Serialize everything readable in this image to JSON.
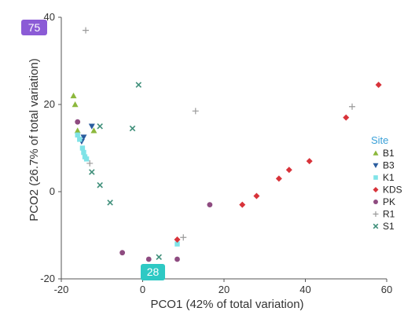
{
  "chart_data": {
    "type": "scatter",
    "xlabel": "PCO1 (42% of total variation)",
    "ylabel": "PCO2 (26.7% of total variation)",
    "xlim": [
      -20,
      60
    ],
    "ylim": [
      -20,
      40
    ],
    "x_ticks": [
      "-20",
      "0",
      "20",
      "40",
      "60"
    ],
    "y_ticks": [
      "40",
      "20",
      "0",
      "-20"
    ],
    "legend": {
      "title": "Site",
      "placement": "right"
    },
    "series": [
      {
        "name": "B1",
        "marker": "triangle-up",
        "color": "#8cb83c",
        "points": [
          [
            -17,
            22
          ],
          [
            -16.6,
            20
          ],
          [
            -16,
            14
          ],
          [
            -12,
            14
          ]
        ]
      },
      {
        "name": "B3",
        "marker": "triangle-down",
        "color": "#2a5d9f",
        "points": [
          [
            -12.5,
            15
          ],
          [
            -14.5,
            12.5
          ],
          [
            -15,
            11.5
          ]
        ]
      },
      {
        "name": "K1",
        "marker": "square",
        "color": "#7fe3e7",
        "points": [
          [
            -16,
            13
          ],
          [
            -15.5,
            12
          ],
          [
            -14.8,
            10
          ],
          [
            -14.5,
            9
          ],
          [
            -14.2,
            8
          ],
          [
            -13.8,
            7.5
          ],
          [
            8.5,
            -12
          ]
        ]
      },
      {
        "name": "KDS",
        "marker": "diamond",
        "color": "#d8333a",
        "points": [
          [
            58,
            24.5
          ],
          [
            50,
            17
          ],
          [
            41,
            7
          ],
          [
            36,
            5
          ],
          [
            33.5,
            3
          ],
          [
            28,
            -1
          ],
          [
            24.5,
            -3
          ],
          [
            8.5,
            -11
          ]
        ]
      },
      {
        "name": "PK",
        "marker": "circle",
        "color": "#8e4b80",
        "points": [
          [
            -16,
            16
          ],
          [
            16.5,
            -3
          ],
          [
            -5,
            -14
          ],
          [
            1.5,
            -15.5
          ],
          [
            8.5,
            -15.5
          ]
        ]
      },
      {
        "name": "R1",
        "marker": "plus",
        "color": "#9a9a9a",
        "points": [
          [
            -14,
            37
          ],
          [
            13,
            18.5
          ],
          [
            51.5,
            19.5
          ],
          [
            10,
            -10.5
          ],
          [
            -13,
            6.5
          ]
        ]
      },
      {
        "name": "S1",
        "marker": "cross",
        "color": "#3f8f7a",
        "points": [
          [
            -1,
            24.5
          ],
          [
            -2.5,
            14.5
          ],
          [
            -10.5,
            15
          ],
          [
            -12.5,
            4.5
          ],
          [
            -10.5,
            1.5
          ],
          [
            -8,
            -2.5
          ],
          [
            4,
            -15
          ]
        ]
      }
    ]
  },
  "badges": [
    {
      "text": "75",
      "color": "#8b5bd6"
    },
    {
      "text": "28",
      "color": "#2ec9c4"
    }
  ]
}
